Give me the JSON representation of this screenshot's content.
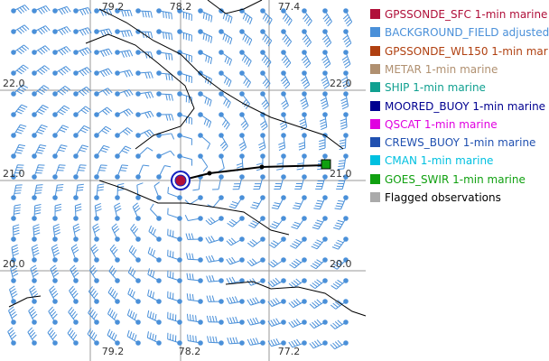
{
  "grid_labels": [
    {
      "text": "79.2",
      "side": "top",
      "pos": 125
    },
    {
      "text": "78.2",
      "side": "top",
      "pos": 200
    },
    {
      "text": "77.4",
      "side": "top",
      "pos": 320
    },
    {
      "text": "22.0",
      "side": "left",
      "pos": 93
    },
    {
      "text": "21.0",
      "side": "left",
      "pos": 193
    },
    {
      "text": "20.0",
      "side": "left",
      "pos": 293
    },
    {
      "text": "22.0",
      "side": "right",
      "pos": 93
    },
    {
      "text": "21.0",
      "side": "right",
      "pos": 193
    },
    {
      "text": "20.0",
      "side": "right",
      "pos": 293
    },
    {
      "text": "79.2",
      "side": "bottom",
      "pos": 125
    },
    {
      "text": "78.2",
      "side": "bottom",
      "pos": 210
    },
    {
      "text": "77.2",
      "side": "bottom",
      "pos": 320
    }
  ],
  "legend": [
    {
      "label": "GPSSONDE_SFC 1-min marine",
      "color": "#b0103a",
      "text_color": "#b0103a"
    },
    {
      "label": "BACKGROUND_FIELD adjusted",
      "color": "#4a90d9",
      "text_color": "#4a90d9"
    },
    {
      "label": "GPSSONDE_WL150 1-min mar",
      "color": "#b04010",
      "text_color": "#b04010"
    },
    {
      "label": "METAR 1-min marine",
      "color": "#b09070",
      "text_color": "#b09070"
    },
    {
      "label": "SHIP 1-min marine",
      "color": "#10a090",
      "text_color": "#10a090"
    },
    {
      "label": "MOORED_BUOY 1-min marine",
      "color": "#000090",
      "text_color": "#000090"
    },
    {
      "label": "QSCAT 1-min marine",
      "color": "#e000e0",
      "text_color": "#e000e0"
    },
    {
      "label": "CREWS_BUOY 1-min marine",
      "color": "#2050b0",
      "text_color": "#2050b0"
    },
    {
      "label": "CMAN 1-min marine",
      "color": "#00c0e0",
      "text_color": "#00c0e0"
    },
    {
      "label": "GOES_SWIR 1-min marine",
      "color": "#10a010",
      "text_color": "#10a010"
    },
    {
      "label": "Flagged observations",
      "color": "#aaaaaa",
      "text_color": "#000000"
    }
  ]
}
